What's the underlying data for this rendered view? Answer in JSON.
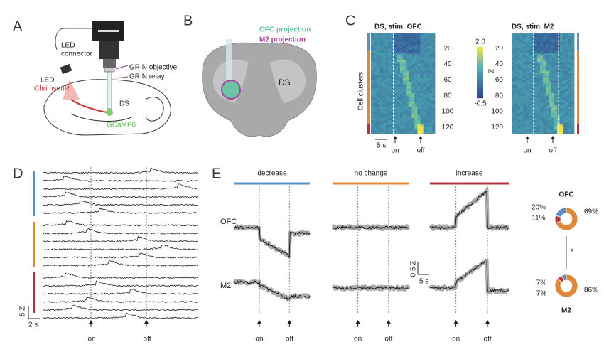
{
  "panel_a": {
    "letter": "A",
    "led_connector": [
      "LED",
      "connector"
    ],
    "led": "LED",
    "chrimsonr": "ChrimsonR",
    "grin_objective": "GRIN objective",
    "grin_relay": "GRIN relay",
    "ds": "DS",
    "gcamp": "GCaMP6"
  },
  "panel_b": {
    "letter": "B",
    "ofc_projection": "OFC projection",
    "m2_projection": "M2 projection",
    "ds": "DS"
  },
  "panel_c": {
    "letter": "C",
    "heatmaps": [
      {
        "title": "DS, stim. OFC",
        "yticks": [
          20,
          40,
          60,
          80,
          100,
          120
        ]
      },
      {
        "title": "DS, stim. M2",
        "yticks": [
          20,
          40,
          60,
          80,
          100,
          120
        ]
      }
    ],
    "y_label": "Cell clusters",
    "colorbar": {
      "max": "2.0",
      "label": "Z",
      "min": "-0.5"
    },
    "scale": "5 s",
    "on": "on",
    "off": "off"
  },
  "panel_d": {
    "letter": "D",
    "scale_y": "5 Z",
    "scale_x": "2 s",
    "on": "on",
    "off": "off"
  },
  "panel_e": {
    "letter": "E",
    "groups": [
      "decrease",
      "no change",
      "increase"
    ],
    "rows": [
      "OFC",
      "M2"
    ],
    "scale_y": "0.5 Z",
    "scale_x": "5 s",
    "on": "on",
    "off": "off",
    "colors": [
      "#5b8fc7",
      "#b0333f",
      "#e0883a"
    ],
    "donuts": [
      {
        "name": "OFC",
        "values": [
          20,
          11,
          69
        ],
        "value_labels": [
          "20%",
          "11%",
          "69%"
        ]
      },
      {
        "name": "M2",
        "values": [
          7,
          7,
          86
        ],
        "value_labels": [
          "7%",
          "7%",
          "86%"
        ]
      }
    ],
    "significance": "*"
  }
}
